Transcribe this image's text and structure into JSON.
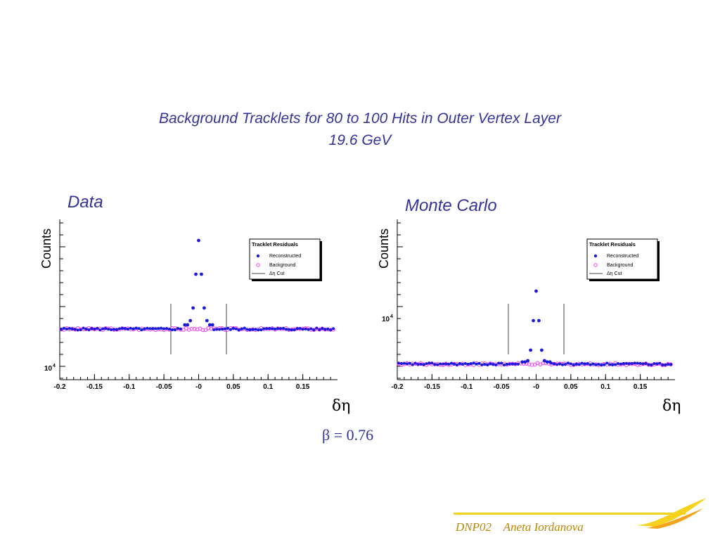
{
  "title_line1": "Background Tracklets  for 80 to 100 Hits in Outer Vertex Layer",
  "title_line2": "19.6 GeV",
  "footer": "DNP02    Aneta Iordanova",
  "beta_label": "β = 0.76",
  "colors": {
    "reconstructed": "#1a1adb",
    "background": "#ee44ee",
    "title": "#33339a",
    "footer": "#b8860b"
  },
  "chart_data": [
    {
      "type": "scatter",
      "panel_label": "Data",
      "ylabel": "Counts",
      "xlabel": "δη",
      "xlim": [
        -0.2,
        0.2
      ],
      "yscale": "log",
      "xticks": [
        "-0.2",
        "-0.15",
        "-0.1",
        "-0.05",
        "-0",
        "0.05",
        "0.1",
        "0.15"
      ],
      "ytick_label": "10",
      "ytick_exponent": "4",
      "cut_lines": [
        -0.04,
        0.04
      ],
      "legend": {
        "title": "Tracklet Residuals",
        "entries": [
          "Reconstructed",
          "Background",
          "Δη Cut"
        ],
        "position": "top-right"
      },
      "series": [
        {
          "name": "Reconstructed",
          "points": [
            [
              -0.02,
              1.9
            ],
            [
              -0.016,
              1.9
            ],
            [
              -0.012,
              2.0
            ],
            [
              -0.008,
              2.3
            ],
            [
              -0.004,
              3.1
            ],
            [
              0.0,
              3.9
            ],
            [
              0.004,
              3.1
            ],
            [
              0.008,
              2.3
            ],
            [
              0.012,
              2.0
            ],
            [
              0.016,
              1.9
            ],
            [
              0.02,
              1.9
            ]
          ],
          "baseline": 1.8
        },
        {
          "name": "Background",
          "baseline": 1.8
        }
      ]
    },
    {
      "type": "scatter",
      "panel_label": "Monte Carlo",
      "ylabel": "Counts",
      "xlabel": "δη",
      "xlim": [
        -0.2,
        0.2
      ],
      "yscale": "log",
      "xticks": [
        "-0.2",
        "-0.15",
        "-0.1",
        "-0.05",
        "-0",
        "0.05",
        "0.1",
        "0.15"
      ],
      "ytick_label": "10",
      "ytick_exponent": "4",
      "cut_lines": [
        -0.04,
        0.04
      ],
      "legend": {
        "title": "Tracklet Residuals",
        "entries": [
          "Reconstructed",
          "Background",
          "Δη Cut"
        ],
        "position": "top-right"
      },
      "series": [
        {
          "name": "Reconstructed",
          "points": [
            [
              -0.02,
              1.02
            ],
            [
              -0.016,
              1.02
            ],
            [
              -0.012,
              1.05
            ],
            [
              -0.008,
              1.3
            ],
            [
              -0.004,
              2.0
            ],
            [
              0.0,
              2.7
            ],
            [
              0.004,
              2.0
            ],
            [
              0.008,
              1.3
            ],
            [
              0.012,
              1.05
            ],
            [
              0.016,
              1.02
            ],
            [
              0.02,
              1.02
            ]
          ],
          "baseline": 0.97
        },
        {
          "name": "Background",
          "baseline": 0.97
        }
      ]
    }
  ]
}
